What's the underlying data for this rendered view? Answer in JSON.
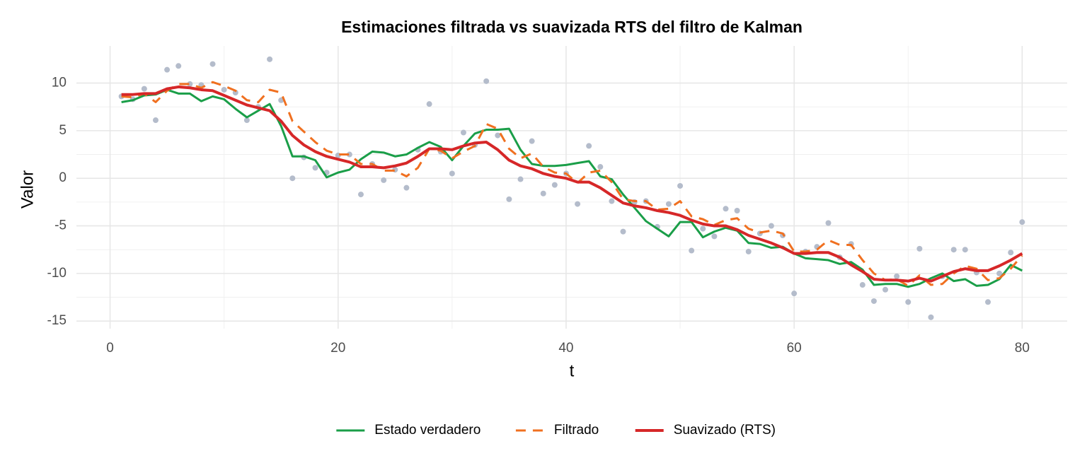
{
  "chart_data": {
    "type": "line",
    "title": "Estimaciones filtrada vs suavizada RTS del filtro de Kalman",
    "xlabel": "t",
    "ylabel": "Valor",
    "x": [
      1,
      2,
      3,
      4,
      5,
      6,
      7,
      8,
      9,
      10,
      11,
      12,
      13,
      14,
      15,
      16,
      17,
      18,
      19,
      20,
      21,
      22,
      23,
      24,
      25,
      26,
      27,
      28,
      29,
      30,
      31,
      32,
      33,
      34,
      35,
      36,
      37,
      38,
      39,
      40,
      41,
      42,
      43,
      44,
      45,
      46,
      47,
      48,
      49,
      50,
      51,
      52,
      53,
      54,
      55,
      56,
      57,
      58,
      59,
      60,
      61,
      62,
      63,
      64,
      65,
      66,
      67,
      68,
      69,
      70,
      71,
      72,
      73,
      74,
      75,
      76,
      77,
      78,
      79,
      80
    ],
    "observations": {
      "color": "#b4bccb",
      "values": [
        8.6,
        8.3,
        9.4,
        6.1,
        11.4,
        11.8,
        9.9,
        9.8,
        12.0,
        9.3,
        9.0,
        6.1,
        7.5,
        12.5,
        8.2,
        0.0,
        2.2,
        1.1,
        0.6,
        2.4,
        2.5,
        -1.7,
        1.5,
        -0.2,
        0.9,
        -1.0,
        3.0,
        7.8,
        2.8,
        0.5,
        4.8,
        3.5,
        10.2,
        4.5,
        -2.2,
        -0.1,
        3.9,
        -1.6,
        -0.7,
        0.5,
        -2.7,
        3.4,
        1.2,
        -2.4,
        -5.6,
        -2.5,
        -2.4,
        -5.1,
        -2.7,
        -0.8,
        -7.6,
        -5.3,
        -6.1,
        -3.2,
        -3.4,
        -7.7,
        -5.8,
        -5.0,
        -6.0,
        -12.1,
        -7.7,
        -7.2,
        -4.7,
        -8.3,
        -6.9,
        -11.2,
        -12.9,
        -11.7,
        -10.3,
        -13.0,
        -7.4,
        -14.6,
        -10.3,
        -7.5,
        -7.5,
        -9.9,
        -13.0,
        -10.0,
        -7.8,
        -4.6
      ]
    },
    "series": [
      {
        "name": "Estado verdadero",
        "color": "#1a9e48",
        "linestyle": "solid",
        "width": 3,
        "values": [
          8.0,
          8.2,
          8.7,
          8.8,
          9.3,
          8.9,
          8.9,
          8.1,
          8.6,
          8.3,
          7.3,
          6.4,
          7.1,
          7.8,
          5.5,
          2.3,
          2.3,
          1.9,
          0.1,
          0.6,
          0.9,
          2.0,
          2.8,
          2.7,
          2.3,
          2.5,
          3.2,
          3.8,
          3.3,
          1.9,
          3.4,
          4.7,
          5.1,
          5.1,
          5.2,
          3.0,
          1.5,
          1.3,
          1.3,
          1.4,
          1.6,
          1.8,
          0.2,
          -0.1,
          -1.7,
          -3.1,
          -4.5,
          -5.3,
          -6.1,
          -4.6,
          -4.6,
          -6.2,
          -5.6,
          -5.2,
          -5.5,
          -6.8,
          -6.9,
          -7.3,
          -7.2,
          -7.9,
          -8.4,
          -8.5,
          -8.6,
          -9.0,
          -8.8,
          -9.6,
          -11.2,
          -11.1,
          -11.1,
          -11.4,
          -11.1,
          -10.5,
          -10.0,
          -10.8,
          -10.6,
          -11.3,
          -11.2,
          -10.6,
          -9.1,
          -9.7
        ]
      },
      {
        "name": "Filtrado",
        "color": "#f07020",
        "linestyle": "dashed",
        "width": 3,
        "values": [
          8.6,
          8.5,
          8.9,
          8.0,
          9.2,
          9.9,
          9.9,
          9.5,
          10.1,
          9.7,
          9.2,
          8.2,
          8.0,
          9.3,
          9.0,
          6.0,
          4.9,
          3.8,
          2.9,
          2.5,
          2.5,
          1.5,
          1.5,
          0.8,
          0.8,
          0.2,
          1.1,
          3.1,
          2.9,
          2.1,
          2.8,
          3.4,
          5.7,
          5.2,
          3.1,
          2.1,
          2.6,
          1.2,
          0.6,
          0.5,
          -0.5,
          0.6,
          0.8,
          -0.4,
          -2.2,
          -2.4,
          -2.4,
          -3.3,
          -3.2,
          -2.4,
          -4.0,
          -4.3,
          -4.9,
          -4.4,
          -4.2,
          -5.3,
          -5.7,
          -5.5,
          -5.8,
          -7.7,
          -7.7,
          -7.5,
          -6.5,
          -7.0,
          -7.0,
          -8.6,
          -10.0,
          -10.7,
          -10.6,
          -11.3,
          -10.2,
          -11.2,
          -11.1,
          -10.0,
          -9.2,
          -9.5,
          -10.7,
          -10.5,
          -9.5,
          -8.1
        ]
      },
      {
        "name": "Suavizado (RTS)",
        "color": "#d62728",
        "linestyle": "solid",
        "width": 4,
        "values": [
          8.8,
          8.8,
          8.9,
          8.9,
          9.4,
          9.6,
          9.5,
          9.3,
          9.2,
          8.7,
          8.2,
          7.7,
          7.4,
          7.1,
          6.0,
          4.5,
          3.5,
          2.8,
          2.3,
          2.0,
          1.7,
          1.2,
          1.2,
          1.1,
          1.3,
          1.6,
          2.3,
          3.1,
          3.1,
          3.0,
          3.4,
          3.7,
          3.8,
          3.0,
          1.9,
          1.3,
          1.0,
          0.5,
          0.2,
          0.0,
          -0.4,
          -0.4,
          -1.0,
          -1.8,
          -2.6,
          -2.9,
          -3.1,
          -3.4,
          -3.6,
          -3.9,
          -4.4,
          -4.8,
          -5.0,
          -5.0,
          -5.4,
          -6.0,
          -6.4,
          -6.8,
          -7.3,
          -7.9,
          -7.9,
          -7.8,
          -7.8,
          -8.3,
          -9.1,
          -9.8,
          -10.6,
          -10.7,
          -10.7,
          -10.8,
          -10.5,
          -10.8,
          -10.3,
          -9.8,
          -9.5,
          -9.7,
          -9.7,
          -9.2,
          -8.6,
          -7.9
        ]
      }
    ],
    "xlim": [
      -2.95,
      83.95
    ],
    "ylim": [
      -15.8,
      13.9
    ],
    "xticks": [
      0,
      20,
      40,
      60,
      80
    ],
    "yticks": [
      -15,
      -10,
      -5,
      0,
      5,
      10
    ],
    "grid": true,
    "legend": "bottom"
  }
}
